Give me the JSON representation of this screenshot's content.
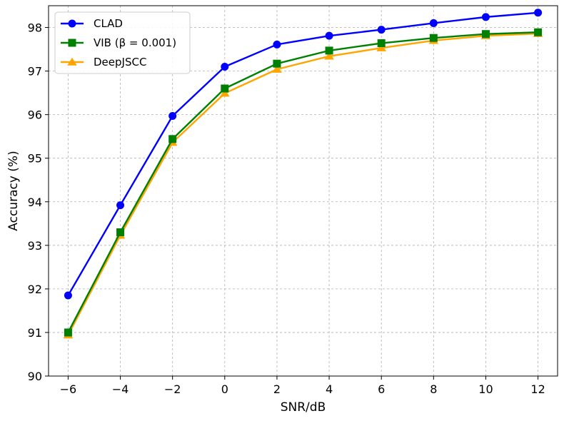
{
  "chart_data": {
    "type": "line",
    "xlabel": "SNR/dB",
    "ylabel": "Accuracy (%)",
    "x": [
      -6,
      -4,
      -2,
      0,
      2,
      4,
      6,
      8,
      10,
      12
    ],
    "x_tick_labels": [
      "−6",
      "−4",
      "−2",
      "0",
      "2",
      "4",
      "6",
      "8",
      "10",
      "12"
    ],
    "y_ticks": [
      90,
      91,
      92,
      93,
      94,
      95,
      96,
      97,
      98
    ],
    "xlim": [
      -6.75,
      12.75
    ],
    "ylim": [
      90,
      98.5
    ],
    "grid": true,
    "legend_position": "top-left",
    "series": [
      {
        "name": "CLAD",
        "color": "#0000ff",
        "marker": "circle",
        "values": [
          91.85,
          93.92,
          95.97,
          97.1,
          97.61,
          97.81,
          97.95,
          98.1,
          98.24,
          98.34
        ]
      },
      {
        "name": "VIB (β = 0.001)",
        "color": "#008000",
        "marker": "square",
        "values": [
          91.0,
          93.3,
          95.44,
          96.6,
          97.17,
          97.47,
          97.64,
          97.76,
          97.85,
          97.89
        ]
      },
      {
        "name": "DeepJSCC",
        "color": "#ffa500",
        "marker": "triangle",
        "values": [
          90.94,
          93.23,
          95.36,
          96.49,
          97.04,
          97.34,
          97.53,
          97.7,
          97.81,
          97.86
        ]
      }
    ]
  }
}
